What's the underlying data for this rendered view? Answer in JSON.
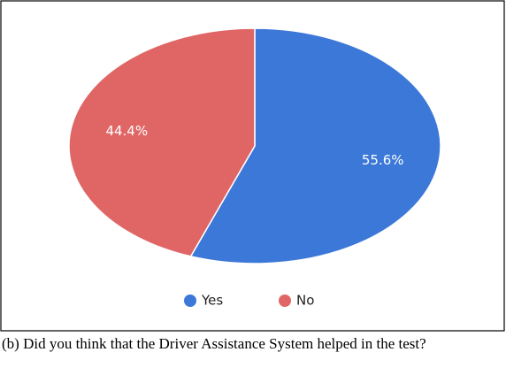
{
  "chart_data": {
    "type": "pie",
    "categories": [
      "Yes",
      "No"
    ],
    "values": [
      55.6,
      44.4
    ],
    "value_labels": [
      "55.6%",
      "44.4%"
    ],
    "colors": [
      "#3c78d8",
      "#e06666"
    ],
    "legend": "bottom",
    "caption": "(b) Did you think that the Driver Assistance System helped in the test?"
  }
}
